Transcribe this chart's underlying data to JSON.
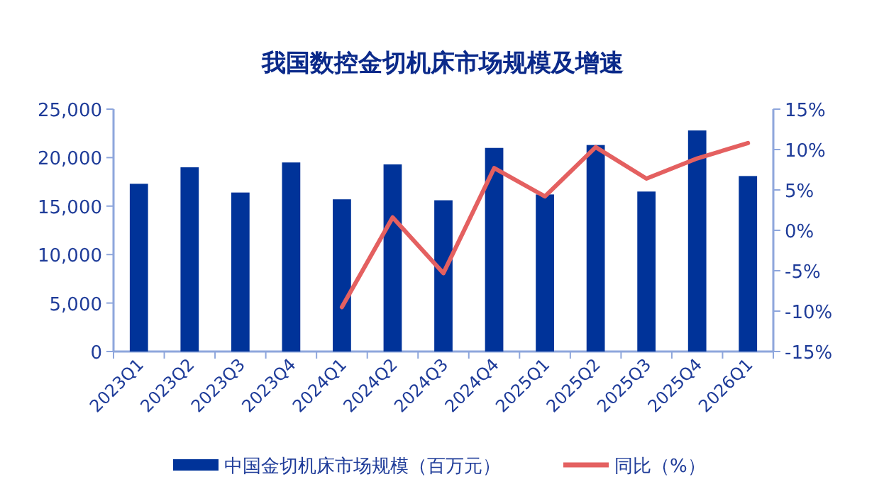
{
  "chart_data": {
    "type": "bar",
    "title": "我国数控金切机床市场规模及增速",
    "categories": [
      "2023Q1",
      "2023Q2",
      "2023Q3",
      "2023Q4",
      "2024Q1",
      "2024Q2",
      "2024Q3",
      "2024Q4",
      "2025Q1",
      "2025Q2",
      "2025Q3",
      "2025Q4",
      "2026Q1"
    ],
    "series": [
      {
        "name": "中国金切机床市场规模（百万元）",
        "color": "#003399",
        "values": [
          17300,
          19000,
          16400,
          19500,
          15700,
          19300,
          15600,
          21000,
          16200,
          21300,
          16500,
          22800,
          18100
        ]
      },
      {
        "name": "同比（%）",
        "type": "line",
        "axis": "y2",
        "color": "#e46060",
        "values": [
          null,
          null,
          null,
          null,
          -9.5,
          1.6,
          -5.3,
          7.7,
          4.2,
          10.3,
          6.4,
          8.9,
          10.8
        ]
      }
    ],
    "ylim": [
      0,
      25000
    ],
    "yticks": [
      {
        "value": 0,
        "label": "0"
      },
      {
        "value": 5000,
        "label": "5,000"
      },
      {
        "value": 10000,
        "label": "10,000"
      },
      {
        "value": 15000,
        "label": "15,000"
      },
      {
        "value": 20000,
        "label": "20,000"
      },
      {
        "value": 25000,
        "label": "25,000"
      }
    ],
    "y2lim": [
      -15,
      15
    ],
    "y2ticks": [
      {
        "value": -15,
        "label": "-15%"
      },
      {
        "value": -10,
        "label": "-10%"
      },
      {
        "value": -5,
        "label": "-5%"
      },
      {
        "value": 0,
        "label": "0%"
      },
      {
        "value": 5,
        "label": "5%"
      },
      {
        "value": 10,
        "label": "10%"
      },
      {
        "value": 15,
        "label": "15%"
      }
    ],
    "grid": false,
    "legend": "bottom",
    "marker": "none",
    "line_style": "solid"
  }
}
